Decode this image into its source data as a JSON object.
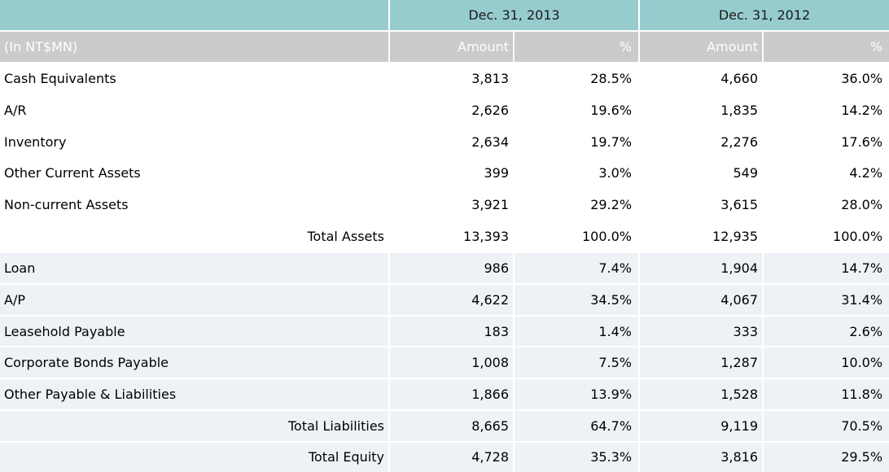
{
  "colors": {
    "header_teal": "#97cccf",
    "header_gray": "#cbcbcb",
    "row_blue": "#eef2f7",
    "row_white": "#ffffff",
    "header_text": "#1a1a1a",
    "subheader_text": "#ffffff",
    "body_text": "#000000",
    "divider": "#ffffff"
  },
  "chart_data": {
    "type": "table",
    "unit_label": "(In NT$MN)",
    "column_groups": [
      "Dec. 31, 2013",
      "Dec. 31, 2012"
    ],
    "sub_headers": [
      "Amount",
      "%",
      "Amount",
      "%"
    ],
    "rows": [
      {
        "label": "Cash Equivalents",
        "section": "assets",
        "is_total": false,
        "values": [
          "3,813",
          "28.5%",
          "4,660",
          "36.0%"
        ]
      },
      {
        "label": "A/R",
        "section": "assets",
        "is_total": false,
        "values": [
          "2,626",
          "19.6%",
          "1,835",
          "14.2%"
        ]
      },
      {
        "label": "Inventory",
        "section": "assets",
        "is_total": false,
        "values": [
          "2,634",
          "19.7%",
          "2,276",
          "17.6%"
        ]
      },
      {
        "label": "Other Current Assets",
        "section": "assets",
        "is_total": false,
        "values": [
          "399",
          "3.0%",
          "549",
          "4.2%"
        ]
      },
      {
        "label": "Non-current Assets",
        "section": "assets",
        "is_total": false,
        "values": [
          "3,921",
          "29.2%",
          "3,615",
          "28.0%"
        ]
      },
      {
        "label": "Total Assets",
        "section": "assets",
        "is_total": true,
        "values": [
          "13,393",
          "100.0%",
          "12,935",
          "100.0%"
        ]
      },
      {
        "label": "Loan",
        "section": "liabilities",
        "is_total": false,
        "values": [
          "986",
          "7.4%",
          "1,904",
          "14.7%"
        ]
      },
      {
        "label": "A/P",
        "section": "liabilities",
        "is_total": false,
        "values": [
          "4,622",
          "34.5%",
          "4,067",
          "31.4%"
        ]
      },
      {
        "label": "Leasehold Payable",
        "section": "liabilities",
        "is_total": false,
        "values": [
          "183",
          "1.4%",
          "333",
          "2.6%"
        ]
      },
      {
        "label": "Corporate Bonds Payable",
        "section": "liabilities",
        "is_total": false,
        "values": [
          "1,008",
          "7.5%",
          "1,287",
          "10.0%"
        ]
      },
      {
        "label": "Other Payable & Liabilities",
        "section": "liabilities",
        "is_total": false,
        "values": [
          "1,866",
          "13.9%",
          "1,528",
          "11.8%"
        ]
      },
      {
        "label": "Total Liabilities",
        "section": "liabilities",
        "is_total": true,
        "values": [
          "8,665",
          "64.7%",
          "9,119",
          "70.5%"
        ]
      },
      {
        "label": "Total Equity",
        "section": "liabilities",
        "is_total": true,
        "values": [
          "4,728",
          "35.3%",
          "3,816",
          "29.5%"
        ]
      }
    ]
  }
}
